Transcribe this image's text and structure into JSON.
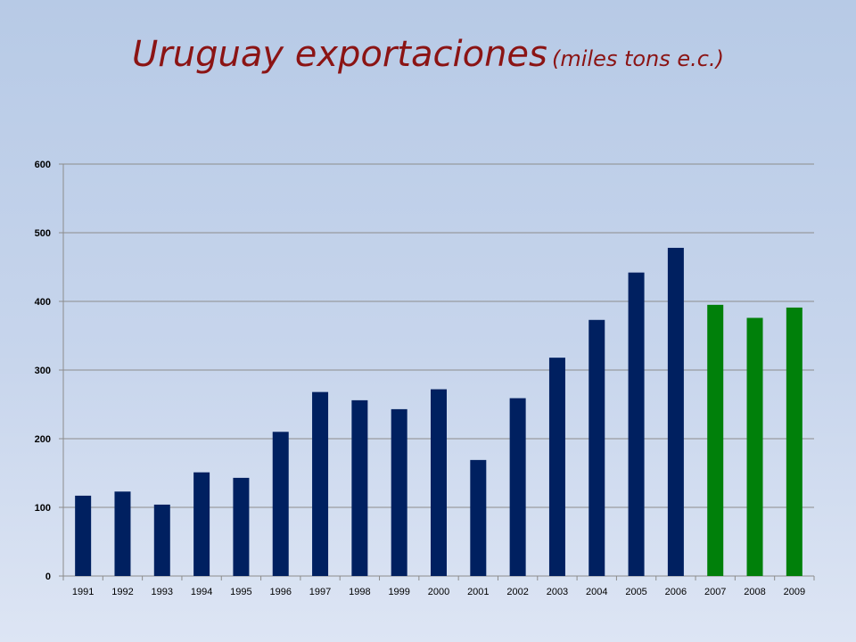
{
  "title": {
    "main": "Uruguay exportaciones",
    "sub": "(miles tons e.c.)"
  },
  "colors": {
    "historic": "#002060",
    "recent": "#00800a",
    "title": "#8b1414"
  },
  "chart_data": {
    "type": "bar",
    "title": "Uruguay exportaciones (miles tons e.c.)",
    "xlabel": "",
    "ylabel": "",
    "ylim": [
      0,
      600
    ],
    "yticks": [
      0,
      100,
      200,
      300,
      400,
      500,
      600
    ],
    "grid": true,
    "legend": "none",
    "categories": [
      "1991",
      "1992",
      "1993",
      "1994",
      "1995",
      "1996",
      "1997",
      "1998",
      "1999",
      "2000",
      "2001",
      "2002",
      "2003",
      "2004",
      "2005",
      "2006",
      "2007",
      "2008",
      "2009"
    ],
    "values": [
      117,
      123,
      104,
      151,
      143,
      210,
      268,
      256,
      243,
      272,
      169,
      259,
      318,
      373,
      442,
      478,
      395,
      376,
      391
    ],
    "bar_colors": [
      "#002060",
      "#002060",
      "#002060",
      "#002060",
      "#002060",
      "#002060",
      "#002060",
      "#002060",
      "#002060",
      "#002060",
      "#002060",
      "#002060",
      "#002060",
      "#002060",
      "#002060",
      "#002060",
      "#00800a",
      "#00800a",
      "#00800a"
    ]
  }
}
